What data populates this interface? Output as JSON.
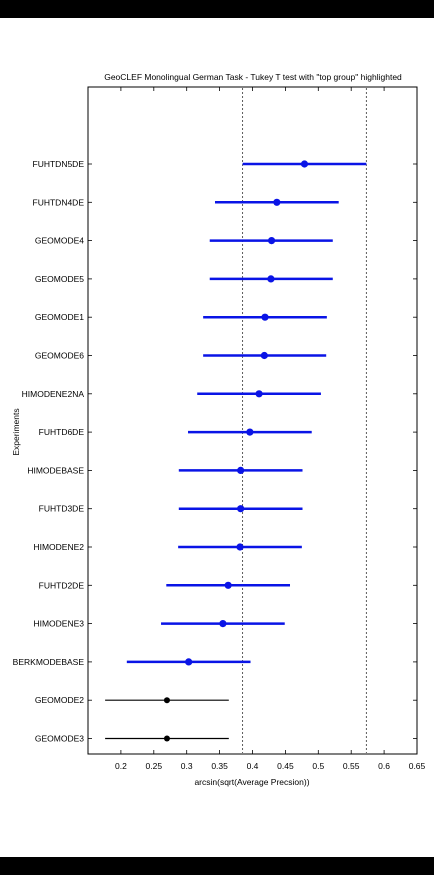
{
  "chart_data": {
    "type": "interval",
    "title": "GeoCLEF Monolingual German Task - Tukey T test with \"top group\" highlighted",
    "xlabel": "arcsin(sqrt(Average Precsion))",
    "ylabel": "Experiments",
    "xlim": [
      0.15,
      0.65
    ],
    "xticks": [
      "0.2",
      "0.25",
      "0.3",
      "0.35",
      "0.4",
      "0.45",
      "0.5",
      "0.55",
      "0.6",
      "0.65"
    ],
    "reference_lines": [
      0.385,
      0.573
    ],
    "top_group_color": "#0a14e6",
    "other_color": "#000000",
    "experiments": [
      {
        "name": "FUHTDN5DE",
        "mean": 0.479,
        "low": 0.385,
        "high": 0.573,
        "top_group": true
      },
      {
        "name": "FUHTDN4DE",
        "mean": 0.437,
        "low": 0.343,
        "high": 0.531,
        "top_group": true
      },
      {
        "name": "GEOMODE4",
        "mean": 0.429,
        "low": 0.335,
        "high": 0.522,
        "top_group": true
      },
      {
        "name": "GEOMODE5",
        "mean": 0.428,
        "low": 0.335,
        "high": 0.522,
        "top_group": true
      },
      {
        "name": "GEOMODE1",
        "mean": 0.419,
        "low": 0.325,
        "high": 0.513,
        "top_group": true
      },
      {
        "name": "GEOMODE6",
        "mean": 0.418,
        "low": 0.325,
        "high": 0.512,
        "top_group": true
      },
      {
        "name": "HIMODENE2NA",
        "mean": 0.41,
        "low": 0.316,
        "high": 0.504,
        "top_group": true
      },
      {
        "name": "FUHTD6DE",
        "mean": 0.396,
        "low": 0.302,
        "high": 0.49,
        "top_group": true
      },
      {
        "name": "HIMODEBASE",
        "mean": 0.382,
        "low": 0.288,
        "high": 0.476,
        "top_group": true
      },
      {
        "name": "FUHTD3DE",
        "mean": 0.382,
        "low": 0.288,
        "high": 0.476,
        "top_group": true
      },
      {
        "name": "HIMODENE2",
        "mean": 0.381,
        "low": 0.287,
        "high": 0.475,
        "top_group": true
      },
      {
        "name": "FUHTD2DE",
        "mean": 0.363,
        "low": 0.269,
        "high": 0.457,
        "top_group": true
      },
      {
        "name": "HIMODENE3",
        "mean": 0.355,
        "low": 0.261,
        "high": 0.449,
        "top_group": true
      },
      {
        "name": "BERKMODEBASE",
        "mean": 0.303,
        "low": 0.209,
        "high": 0.397,
        "top_group": true
      },
      {
        "name": "GEOMODE2",
        "mean": 0.27,
        "low": 0.176,
        "high": 0.364,
        "top_group": false
      },
      {
        "name": "GEOMODE3",
        "mean": 0.27,
        "low": 0.176,
        "high": 0.364,
        "top_group": false
      }
    ]
  }
}
